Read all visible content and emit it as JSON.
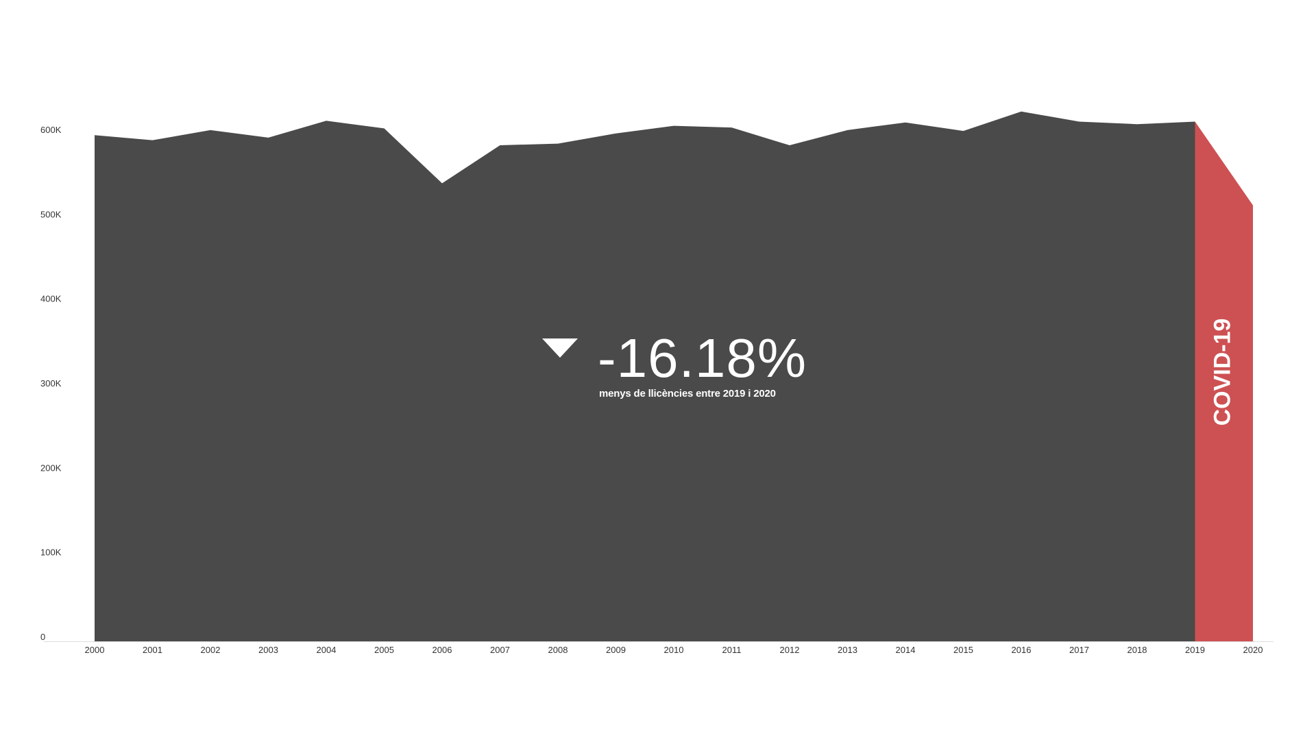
{
  "chart_data": {
    "type": "area",
    "x": [
      "2000",
      "2001",
      "2002",
      "2003",
      "2004",
      "2005",
      "2006",
      "2007",
      "2008",
      "2009",
      "2010",
      "2011",
      "2012",
      "2013",
      "2014",
      "2015",
      "2016",
      "2017",
      "2018",
      "2019",
      "2020"
    ],
    "values": [
      599000,
      593000,
      605000,
      596000,
      616000,
      607000,
      542000,
      587000,
      589000,
      601000,
      610000,
      608000,
      587000,
      605000,
      614000,
      604000,
      627000,
      615000,
      612000,
      615000,
      516000
    ],
    "ylim": [
      0,
      650000
    ],
    "y_ticks": [
      0,
      100000,
      200000,
      300000,
      400000,
      500000,
      600000
    ],
    "y_tick_labels": [
      "0",
      "100K",
      "200K",
      "300K",
      "400K",
      "500K",
      "600K"
    ],
    "grid": false,
    "colors": {
      "area": "#4a4a4a",
      "highlight": "#cd5153",
      "axis": "#dddddd"
    },
    "highlight": {
      "from": "2019",
      "to": "2020",
      "label": "COVID-19"
    },
    "annotation": {
      "icon": "triangle-down-icon",
      "value": "-16.18%",
      "caption": "menys de llicències entre 2019 i 2020"
    }
  }
}
